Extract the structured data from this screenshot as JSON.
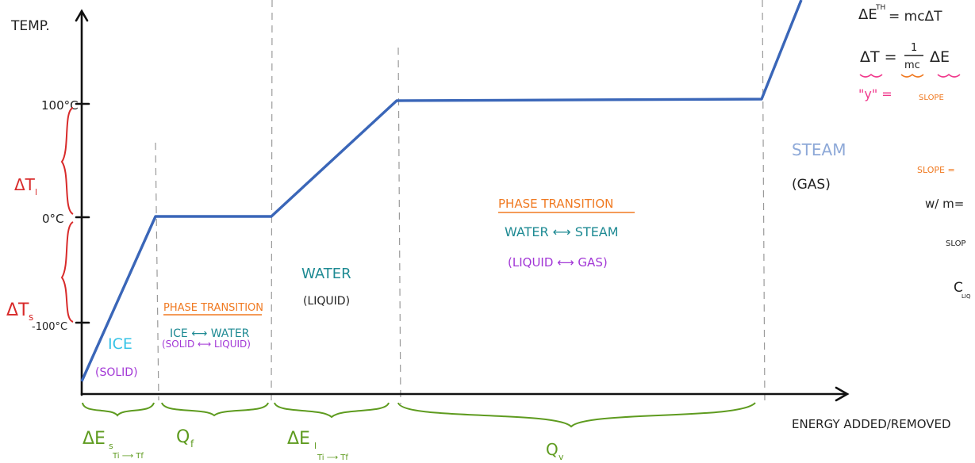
{
  "axes": {
    "y_label": "TEMP.",
    "x_label": "ENERGY ADDED/REMOVED",
    "ticks": [
      "100°C",
      "0°C",
      "-100°C"
    ]
  },
  "brackets_y": {
    "delta_t_liquid": "ΔT",
    "delta_t_liquid_sub": "l",
    "delta_t_solid": "ΔT",
    "delta_t_solid_sub": "s"
  },
  "regions": {
    "ice": {
      "name": "ICE",
      "state": "(SOLID)"
    },
    "fusion": {
      "heading": "PHASE TRANSITION",
      "line1": "ICE ⟷ WATER",
      "line2": "(SOLID ⟷ LIQUID)"
    },
    "water": {
      "name": "WATER",
      "state": "(LIQUID)"
    },
    "vapor": {
      "heading": "PHASE TRANSITION",
      "line1": "WATER ⟷ STEAM",
      "line2": "(LIQUID ⟷ GAS)"
    },
    "steam": {
      "name": "STEAM",
      "state": "(GAS)"
    }
  },
  "energy_labels": {
    "de_solid": "ΔE",
    "de_solid_sub": "s",
    "de_solid_range": "Ti ⟶ Tf",
    "q_f": "Q",
    "q_f_sub": "f",
    "de_liquid": "ΔE",
    "de_liquid_sub": "l",
    "de_liquid_range": "Ti ⟶ Tf",
    "q_v": "Q",
    "q_v_sub": "v"
  },
  "notes": {
    "eq1": "ΔE",
    "eq1_sup": "TH",
    "eq1_rest": "= mcΔT",
    "eq2_lhs": "ΔT =",
    "eq2_frac_num": "1",
    "eq2_frac_den": "mc",
    "eq2_rest": "ΔE",
    "eq3_y": "\"y\" =",
    "eq3_slope": "SLOPE",
    "slope_eq": "SLOPE =",
    "w_m": "w/ m=",
    "slope_short": "SLOP",
    "c_liq": "C",
    "c_liq_sub": "LIQ"
  },
  "colors": {
    "line": "#3a66b8",
    "ice": "#36c3e6",
    "purple": "#a237d6",
    "orange": "#f07a22",
    "teal": "#1e8a93",
    "steam": "#8ea9d8",
    "red": "#d82a2a",
    "green": "#5e9b1f",
    "pink": "#f0398c",
    "ink": "#222222"
  }
}
